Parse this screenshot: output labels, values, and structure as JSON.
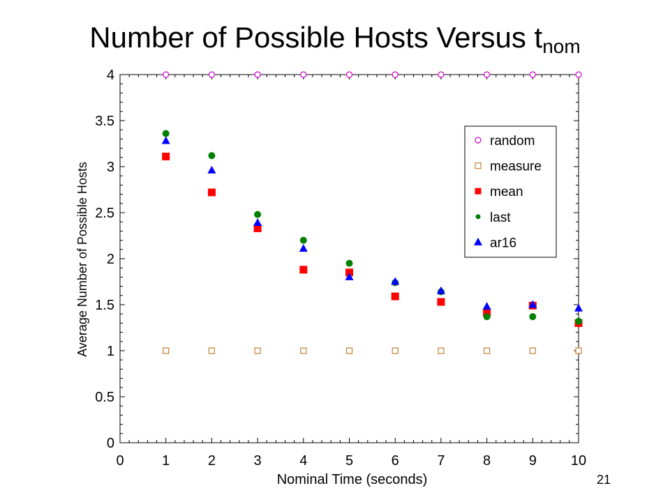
{
  "slide": {
    "title": "Number of Possible Hosts Versus t",
    "title_subscript": "nom",
    "page_number": "21"
  },
  "chart_data": {
    "type": "scatter",
    "title": "",
    "xlabel": "Nominal Time (seconds)",
    "ylabel": "Average Number of Possible Hosts",
    "xlim": [
      0,
      10
    ],
    "ylim": [
      0,
      4
    ],
    "x_ticks": [
      "0",
      "1",
      "2",
      "3",
      "4",
      "5",
      "6",
      "7",
      "8",
      "9",
      "10"
    ],
    "y_ticks": [
      "0",
      "0.5",
      "1",
      "1.5",
      "2",
      "2.5",
      "3",
      "3.5",
      "4"
    ],
    "grid": false,
    "legend_position": "top-right",
    "x": [
      1,
      2,
      3,
      4,
      5,
      6,
      7,
      8,
      9,
      10
    ],
    "series": [
      {
        "name": "random",
        "marker": "open-circle",
        "color": "#cc00cc",
        "values": [
          4,
          4,
          4,
          4,
          4,
          4,
          4,
          4,
          4,
          4
        ]
      },
      {
        "name": "measure",
        "marker": "open-square",
        "color": "#c08030",
        "values": [
          1,
          1,
          1,
          1,
          1,
          1,
          1,
          1,
          1,
          1
        ]
      },
      {
        "name": "mean",
        "marker": "filled-square",
        "color": "#ff0000",
        "values": [
          3.11,
          2.72,
          2.33,
          1.88,
          1.85,
          1.59,
          1.53,
          1.41,
          1.49,
          1.3
        ]
      },
      {
        "name": "last",
        "marker": "filled-circle",
        "color": "#008000",
        "values": [
          3.36,
          3.12,
          2.48,
          2.2,
          1.95,
          1.74,
          1.64,
          1.37,
          1.37,
          1.32
        ]
      },
      {
        "name": "ar16",
        "marker": "filled-triangle",
        "color": "#0000ff",
        "values": [
          3.28,
          2.96,
          2.39,
          2.11,
          1.8,
          1.75,
          1.65,
          1.48,
          1.5,
          1.46
        ]
      }
    ]
  }
}
